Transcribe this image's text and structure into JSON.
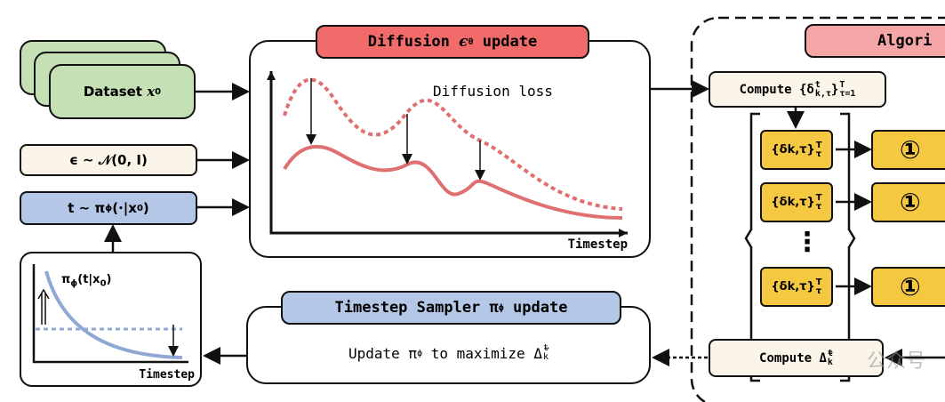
{
  "inputs": {
    "dataset": {
      "pre": "Dataset ",
      "var": "x",
      "sub": "0"
    },
    "noise": "ϵ ~ 𝒩(0, I)",
    "t_sample": {
      "pre": "t ~ π",
      "sub1": "ϕ",
      "mid": "(·|x",
      "sub2": "0",
      "post": ")"
    },
    "sampler_plot": {
      "label": {
        "pre": "π",
        "sub1": "ϕ",
        "mid": "(t|x",
        "sub2": "0",
        "post": ")"
      },
      "x_label": "Timestep"
    }
  },
  "diffusion": {
    "title": {
      "pre": "Diffusion ",
      "sym": "ϵ",
      "sub": "θ",
      "post": " update"
    },
    "loss_label": "Diffusion loss",
    "x_label": "Timestep"
  },
  "sampler": {
    "title": {
      "pre": "Timestep Sampler π",
      "sub": "ϕ",
      "post": " update"
    },
    "body": {
      "pre": "Update π",
      "sub": "ϕ",
      "mid": " to maximize Δ̃",
      "sup": "t",
      "sub2": "k"
    }
  },
  "algorithm": {
    "title": "Algori",
    "compute_deltas": {
      "pre": "Compute {δ",
      "sup": "t",
      "sub": "k,τ",
      "mid": "}",
      "sup2": "T",
      "sub2": "τ=1"
    },
    "branches": [
      {
        "set": "{δk,τ}",
        "sup": "T",
        "sub": "τ",
        "step": "①"
      },
      {
        "set": "{δk,τ}",
        "sup": "T",
        "sub": "τ",
        "step": "①"
      },
      {
        "set": "{δk,τ}",
        "sup": "T",
        "sub": "τ",
        "step": "①"
      }
    ],
    "ellipsis": "⋮",
    "compute_gain": {
      "pre": "Compute Δ̃",
      "sup": "t",
      "sub": "k"
    }
  },
  "watermark": "公众号"
}
